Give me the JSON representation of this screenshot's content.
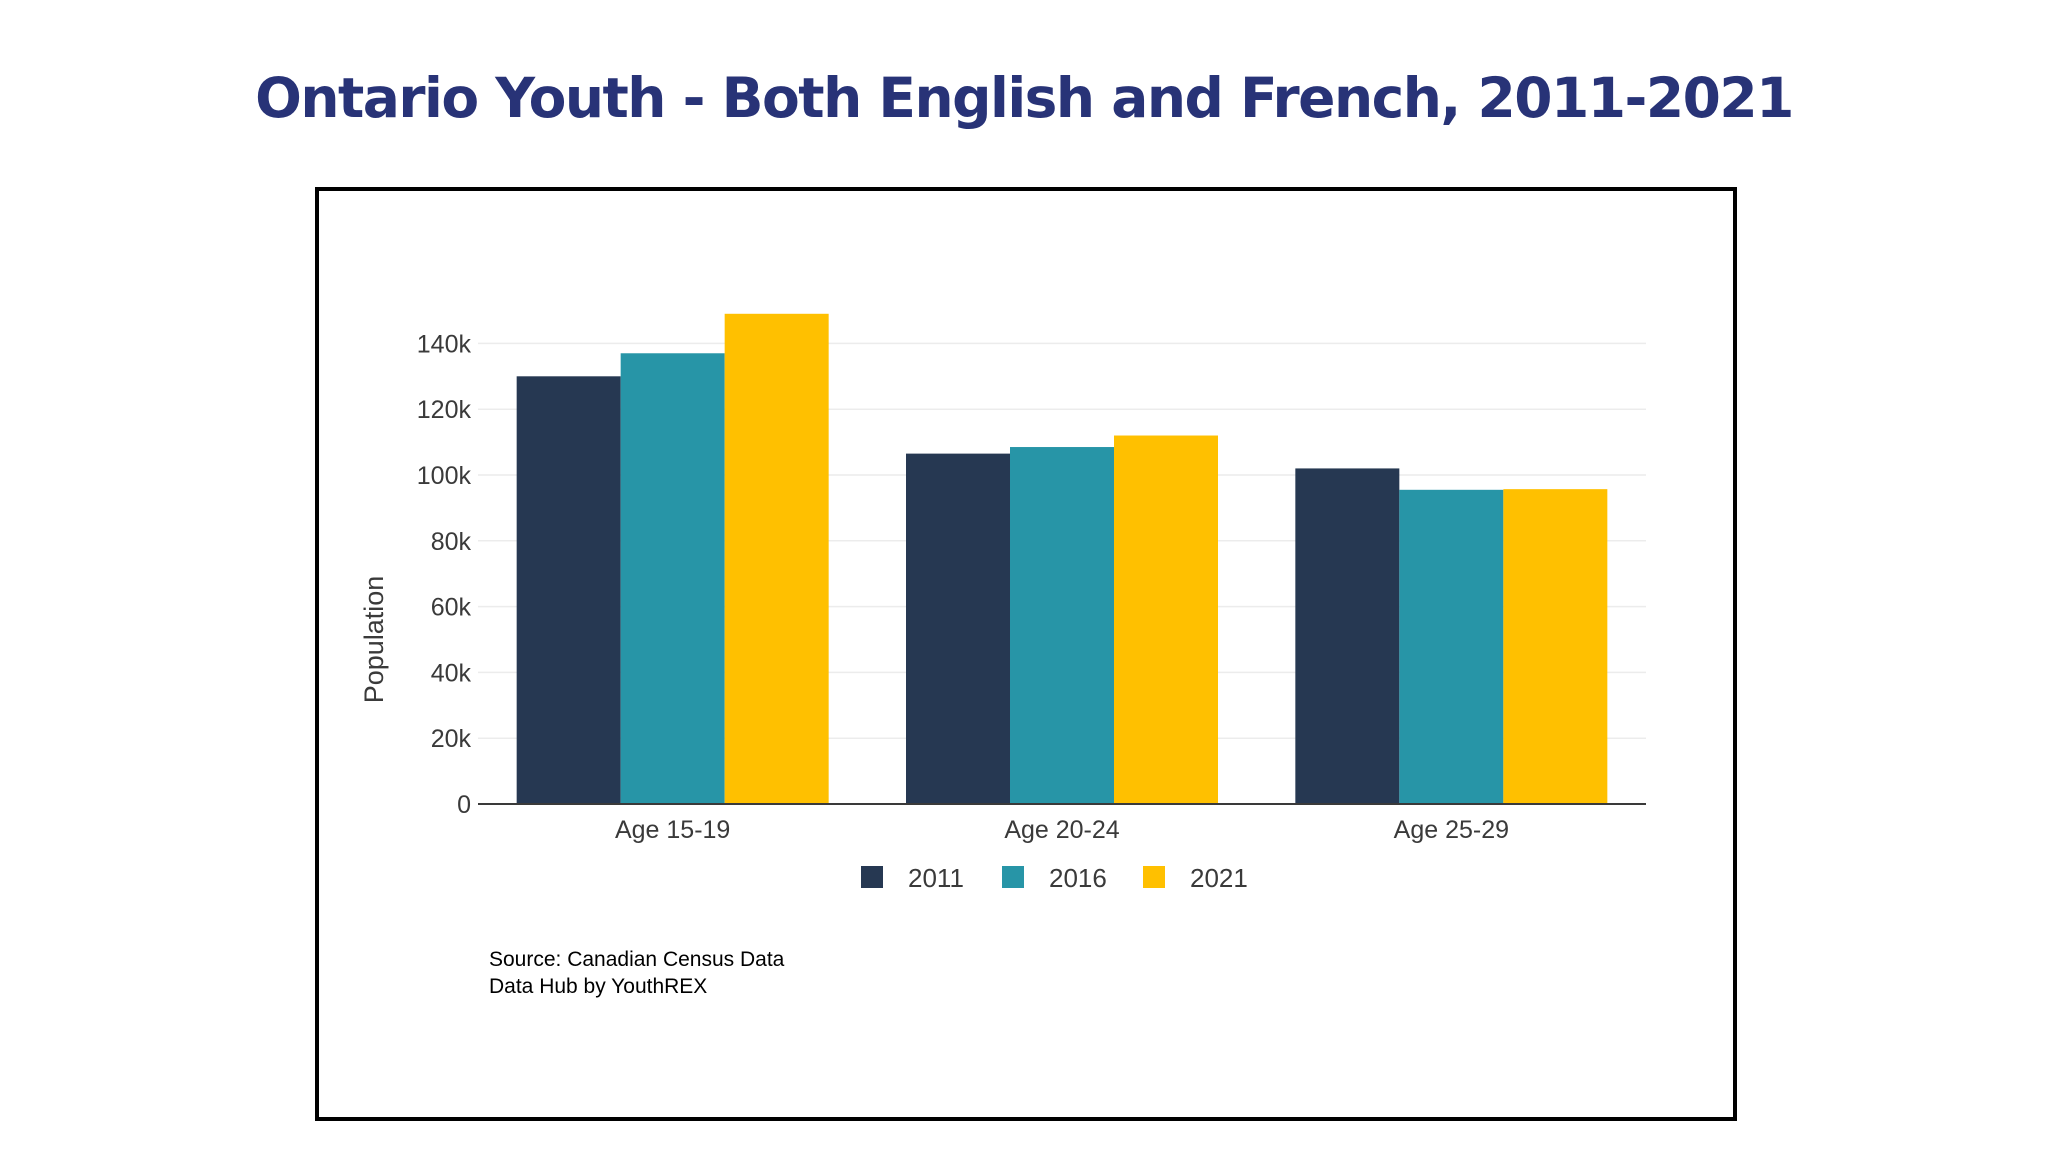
{
  "title": "Ontario Youth - Both English and French, 2011-2021",
  "source_lines": [
    "Source: Canadian Census Data",
    "Data Hub by YouthREX"
  ],
  "colors": {
    "title": "#283377",
    "series": [
      "#263852",
      "#2795a7",
      "#ffc000"
    ],
    "grid": "#ececec",
    "axis": "#3a3a3a"
  },
  "chart_data": {
    "type": "bar",
    "title": "",
    "xlabel": "",
    "ylabel": "Population",
    "categories": [
      "Age 15-19",
      "Age 20-24",
      "Age 25-29"
    ],
    "series": [
      {
        "name": "2011",
        "values": [
          130000,
          106500,
          102000
        ]
      },
      {
        "name": "2016",
        "values": [
          137000,
          108500,
          95500
        ]
      },
      {
        "name": "2021",
        "values": [
          149000,
          112000,
          95700
        ]
      }
    ],
    "ylim": [
      0,
      160000
    ],
    "yticks": [
      0,
      20000,
      40000,
      60000,
      80000,
      100000,
      120000,
      140000
    ],
    "ytick_labels": [
      "0",
      "20k",
      "40k",
      "60k",
      "80k",
      "100k",
      "120k",
      "140k"
    ],
    "grid": true,
    "legend": "bottom"
  }
}
